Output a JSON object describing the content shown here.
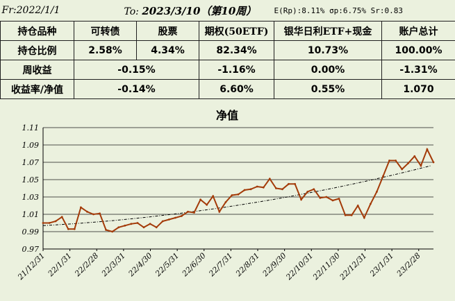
{
  "header": {
    "from": "Fr:2022/1/1",
    "to_prefix": "To: ",
    "to_date": "2023/3/10（第10周）",
    "stats": "E(Rp):8.11% σp:6.75% Sr:0.83"
  },
  "table": {
    "columns": [
      "持仓品种",
      "可转债",
      "股票",
      "期权(50ETF)",
      "银华日利ETF+现金",
      "账户总计"
    ],
    "rows": [
      {
        "label": "持仓比例",
        "cells": [
          "2.58%",
          "4.34%",
          "82.34%",
          "10.73%",
          "100.00%"
        ]
      },
      {
        "label": "周收益",
        "merged": "-0.15%",
        "cells": [
          "-1.16%",
          "0.00%",
          "-1.31%"
        ]
      },
      {
        "label": "收益率/净值",
        "merged": "-0.14%",
        "cells": [
          "6.60%",
          "0.55%",
          "1.070"
        ]
      }
    ]
  },
  "chart_data": {
    "type": "line",
    "title": "净值",
    "xlabel": "",
    "ylabel": "",
    "ylim": [
      0.97,
      1.11
    ],
    "yticks": [
      "0.97",
      "0.99",
      "1.01",
      "1.03",
      "1.05",
      "1.07",
      "1.09",
      "1.11"
    ],
    "xticks": [
      "21/12/31",
      "22/1/31",
      "22/2/28",
      "22/3/31",
      "22/4/30",
      "22/5/31",
      "22/6/30",
      "22/7/31",
      "22/8/31",
      "22/9/30",
      "22/10/31",
      "22/11/30",
      "22/12/31",
      "23/1/31",
      "23/2/28"
    ],
    "colors": {
      "net_value": "#a33a08",
      "trend": "#000000",
      "grid": "#1a1a1a"
    },
    "series": [
      {
        "values": [
          1.0,
          1.0,
          1.002,
          1.007,
          0.993,
          0.993,
          1.018,
          1.013,
          1.01,
          1.011,
          0.992,
          0.99,
          0.995,
          0.997,
          0.999,
          1.0,
          0.995,
          0.999,
          0.995,
          1.002,
          1.004,
          1.006,
          1.008,
          1.013,
          1.012,
          1.027,
          1.021,
          1.031,
          1.013,
          1.024,
          1.032,
          1.033,
          1.038,
          1.039,
          1.042,
          1.041,
          1.051,
          1.04,
          1.039,
          1.045,
          1.045,
          1.027,
          1.036,
          1.039,
          1.029,
          1.03,
          1.026,
          1.028,
          1.009,
          1.009,
          1.02,
          1.006,
          1.022,
          1.036,
          1.054,
          1.072,
          1.072,
          1.062,
          1.069,
          1.077,
          1.066,
          1.085,
          1.07
        ]
      },
      {
        "values": [
          0.997,
          1.066
        ]
      }
    ]
  }
}
